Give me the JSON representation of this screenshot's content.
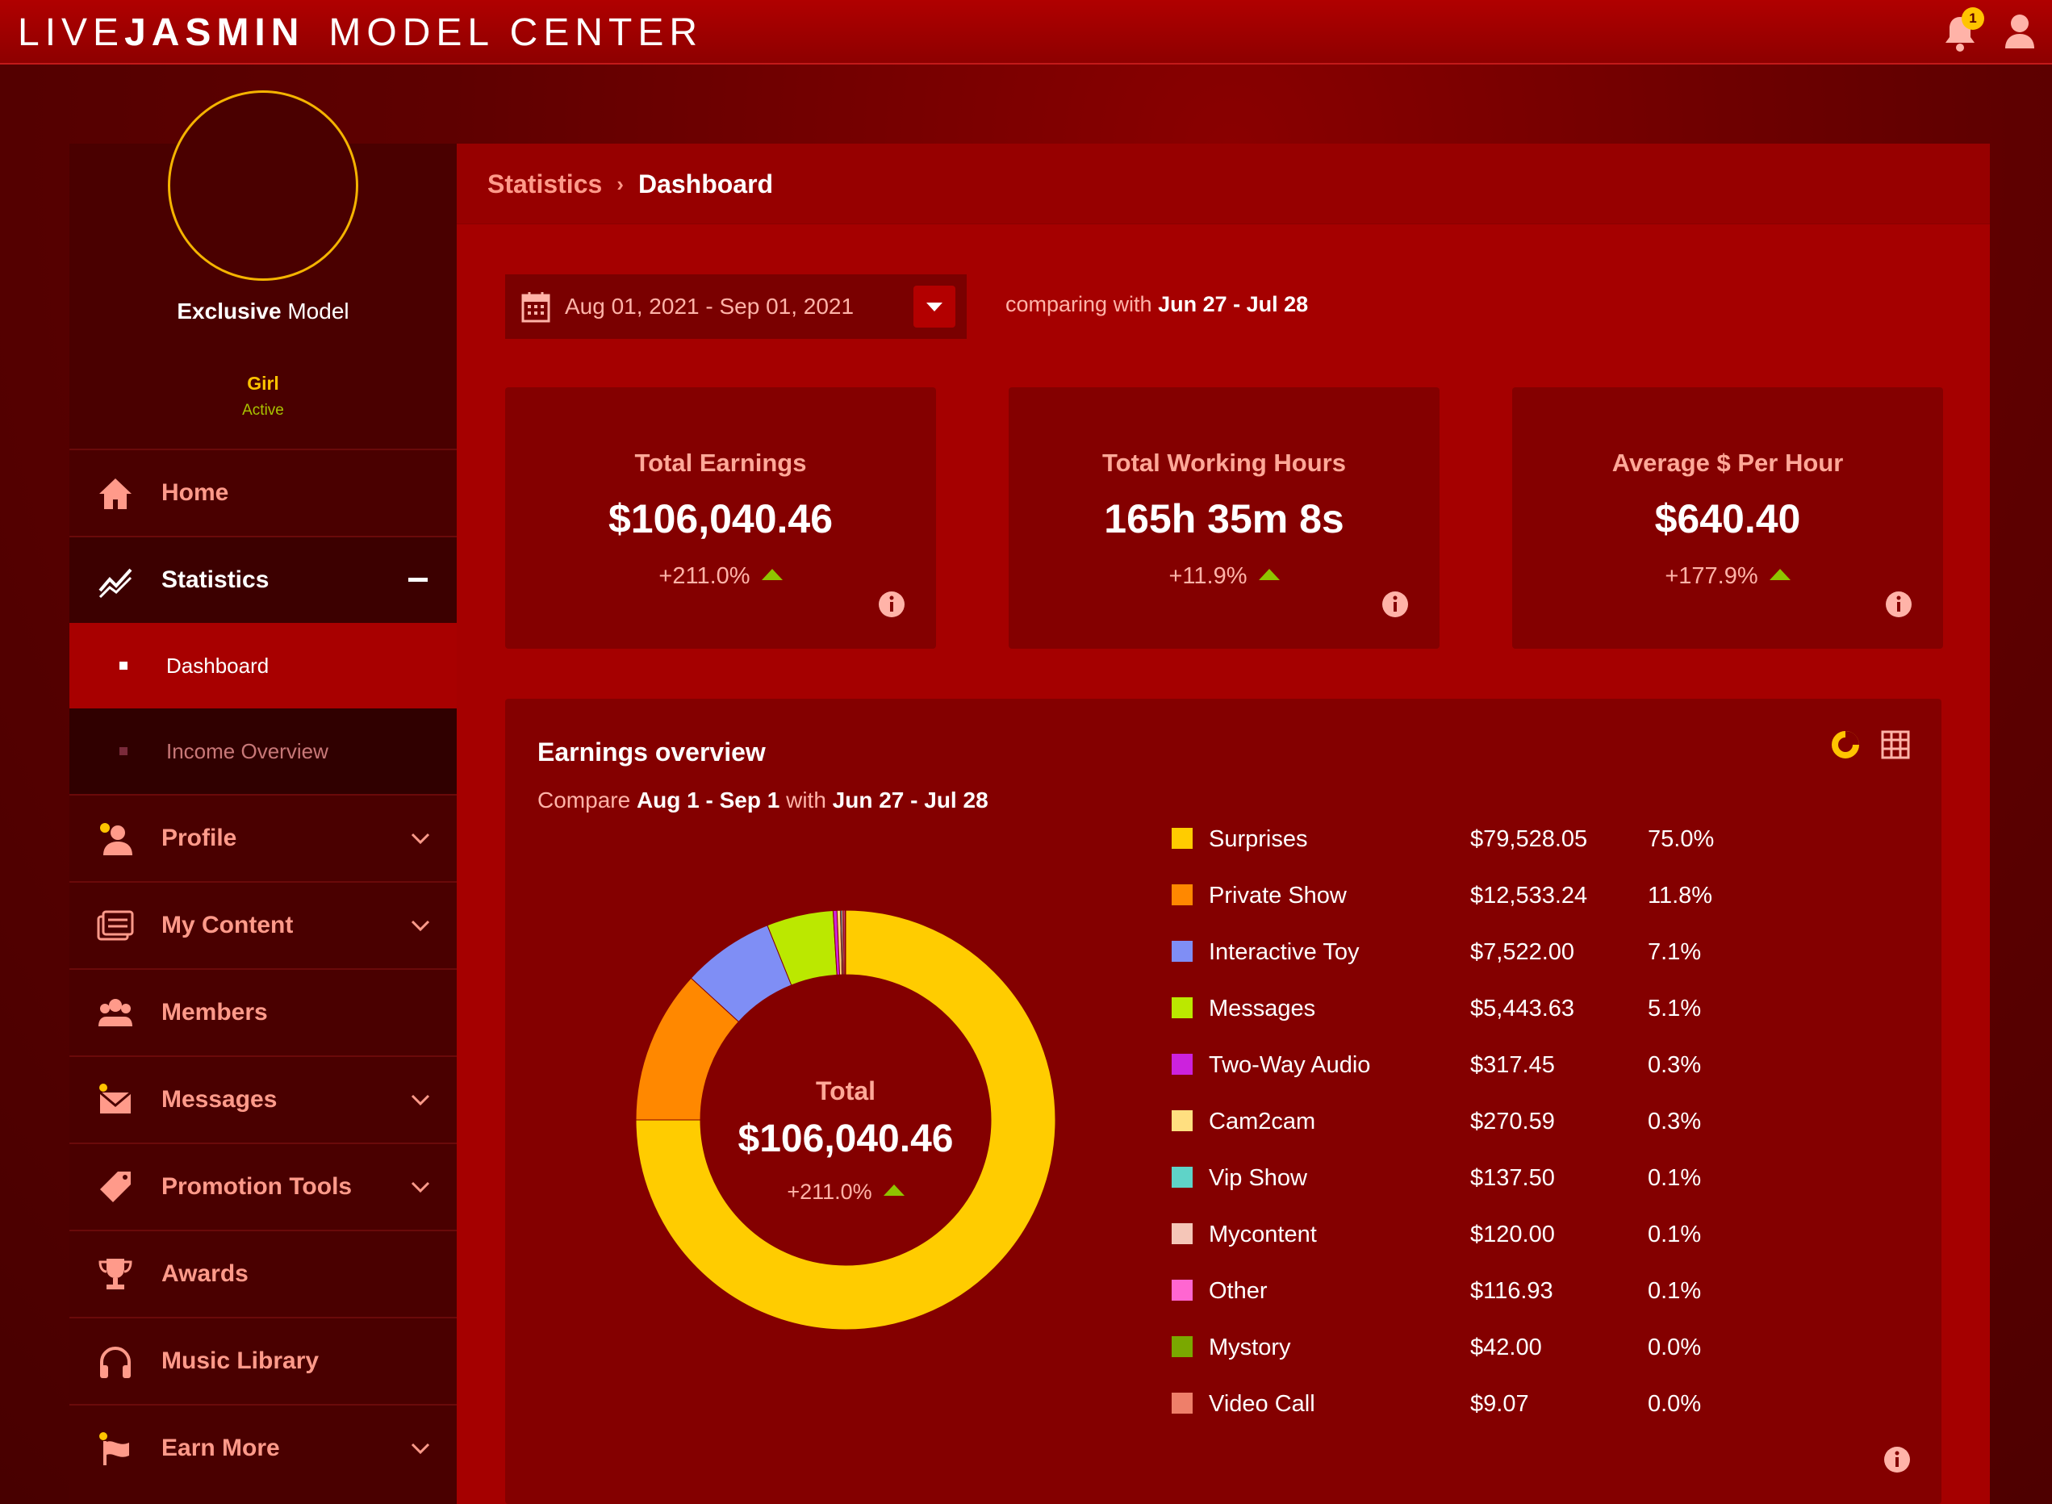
{
  "header": {
    "brand_light": "LIVE",
    "brand_bold": "JASMIN",
    "center": "MODEL CENTER",
    "notification_count": "1",
    "icons": [
      "bell-icon",
      "user-icon"
    ]
  },
  "profile": {
    "type_bold": "Exclusive",
    "type_rest": " Model",
    "gender": "Girl",
    "status": "Active"
  },
  "nav": {
    "home": "Home",
    "statistics": "Statistics",
    "dashboard": "Dashboard",
    "income_overview": "Income Overview",
    "profile": "Profile",
    "my_content": "My Content",
    "members": "Members",
    "messages": "Messages",
    "promotion_tools": "Promotion Tools",
    "awards": "Awards",
    "music_library": "Music Library",
    "earn_more": "Earn More"
  },
  "breadcrumb": {
    "parent": "Statistics",
    "separator": "›",
    "current": "Dashboard"
  },
  "filter": {
    "date_range": "Aug 01, 2021 - Sep 01, 2021",
    "comparing_prefix": "comparing with ",
    "comparing_range": "Jun 27 - Jul 28"
  },
  "cards": [
    {
      "title": "Total Earnings",
      "value": "$106,040.46",
      "delta": "+211.0%"
    },
    {
      "title": "Total Working Hours",
      "value": "165h 35m 8s",
      "delta": "+11.9%"
    },
    {
      "title": "Average $ Per Hour",
      "value": "$640.40",
      "delta": "+177.9%"
    }
  ],
  "earnings": {
    "title": "Earnings overview",
    "compare_word": "Compare ",
    "range_a": "Aug 1 - Sep 1",
    "with_word": " with ",
    "range_b": "Jun 27 - Jul 28",
    "center_title": "Total",
    "center_value": "$106,040.46",
    "center_delta": "+211.0%"
  },
  "chart_data": {
    "type": "pie",
    "categories": [
      "Surprises",
      "Private Show",
      "Interactive Toy",
      "Messages",
      "Two-Way Audio",
      "Cam2cam",
      "Vip Show",
      "Mycontent",
      "Other",
      "Mystory",
      "Video Call"
    ],
    "values": [
      79528.05,
      12533.24,
      7522.0,
      5443.63,
      317.45,
      270.59,
      137.5,
      120.0,
      116.93,
      42.0,
      9.07
    ],
    "amount_labels": [
      "$79,528.05",
      "$12,533.24",
      "$7,522.00",
      "$5,443.63",
      "$317.45",
      "$270.59",
      "$137.50",
      "$120.00",
      "$116.93",
      "$42.00",
      "$9.07"
    ],
    "percent_labels": [
      "75.0%",
      "11.8%",
      "7.1%",
      "5.1%",
      "0.3%",
      "0.3%",
      "0.1%",
      "0.1%",
      "0.1%",
      "0.0%",
      "0.0%"
    ],
    "colors": [
      "#ffcc00",
      "#ff8800",
      "#7f8ef5",
      "#bbe800",
      "#cc22dd",
      "#ffdf80",
      "#5fd3c8",
      "#f5c6b8",
      "#ff66d1",
      "#7aa800",
      "#ee7f6a"
    ]
  }
}
